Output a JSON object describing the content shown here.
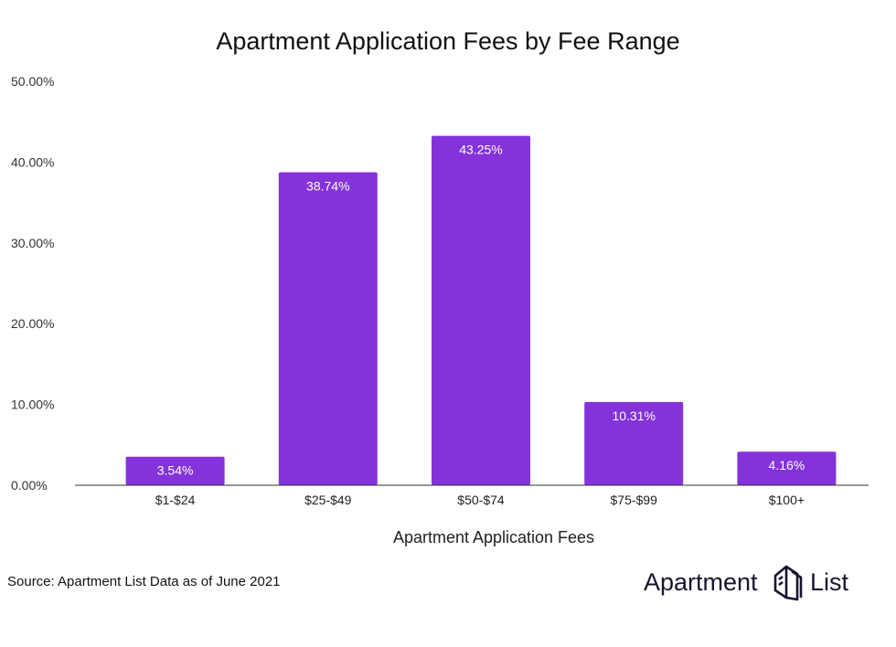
{
  "chart_data": {
    "type": "bar",
    "title": "Apartment Application Fees by Fee Range",
    "xlabel": "Apartment Application Fees",
    "ylabel": "",
    "categories": [
      "$1-$24",
      "$25-$49",
      "$50-$74",
      "$75-$99",
      "$100+"
    ],
    "values": [
      3.54,
      38.74,
      43.25,
      10.31,
      4.16
    ],
    "data_labels": [
      "3.54%",
      "38.74%",
      "43.25%",
      "10.31%",
      "4.16%"
    ],
    "ylim": [
      0,
      50
    ],
    "yticks": [
      0,
      10,
      20,
      30,
      40,
      50
    ],
    "ytick_labels": [
      "0.00%",
      "10.00%",
      "20.00%",
      "30.00%",
      "40.00%",
      "50.00%"
    ],
    "grid": false,
    "legend": "none",
    "bar_color": "#8333d9"
  },
  "source": "Source: Apartment List Data as of June 2021",
  "logo": {
    "text": "Apartment",
    "text2": "List",
    "icon": "building-logo-icon"
  }
}
